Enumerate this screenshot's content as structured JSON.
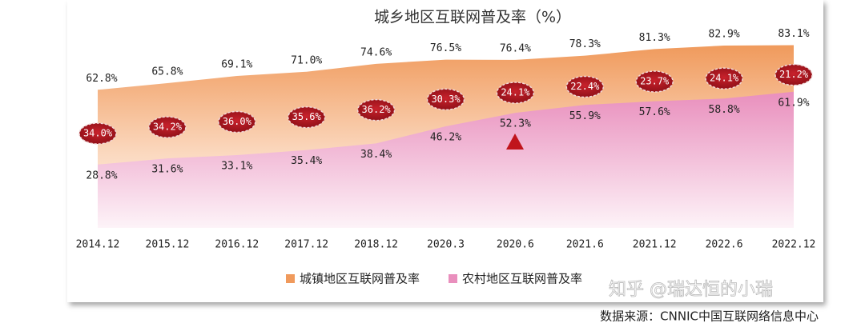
{
  "chart_data": {
    "type": "area",
    "title": "城乡地区互联网普及率（%）",
    "categories": [
      "2014.12",
      "2015.12",
      "2016.12",
      "2017.12",
      "2018.12",
      "2020.3",
      "2020.6",
      "2021.6",
      "2021.12",
      "2022.6",
      "2022.12"
    ],
    "series": [
      {
        "name": "城镇地区互联网普及率",
        "color": "#f09a5c",
        "values": [
          62.8,
          65.8,
          69.1,
          71.0,
          74.6,
          76.5,
          76.4,
          78.3,
          81.3,
          82.9,
          83.1
        ],
        "value_labels": [
          "62.8%",
          "65.8%",
          "69.1%",
          "71.0%",
          "74.6%",
          "76.5%",
          "76.4%",
          "78.3%",
          "81.3%",
          "82.9%",
          "83.1%"
        ]
      },
      {
        "name": "农村地区互联网普及率",
        "color": "#e98fbd",
        "values": [
          28.8,
          31.6,
          33.1,
          35.4,
          38.4,
          46.2,
          52.3,
          55.9,
          57.6,
          58.8,
          61.9
        ],
        "value_labels": [
          "28.8%",
          "31.6%",
          "33.1%",
          "35.4%",
          "38.4%",
          "46.2%",
          "52.3%",
          "55.9%",
          "57.6%",
          "58.8%",
          "61.9%"
        ]
      }
    ],
    "differences": {
      "color": "#b3141e",
      "values": [
        34.0,
        34.2,
        36.0,
        35.6,
        36.2,
        30.3,
        24.1,
        22.4,
        23.7,
        24.1,
        21.2
      ],
      "value_labels": [
        "34.0%",
        "34.2%",
        "36.0%",
        "35.6%",
        "36.2%",
        "30.3%",
        "24.1%",
        "22.4%",
        "23.7%",
        "24.1%",
        "21.2%"
      ]
    },
    "ylim": [
      0,
      100
    ],
    "source": "数据来源：CNNIC中国互联网络信息中心",
    "watermark": "知乎 @瑞达恒的小瑞"
  }
}
